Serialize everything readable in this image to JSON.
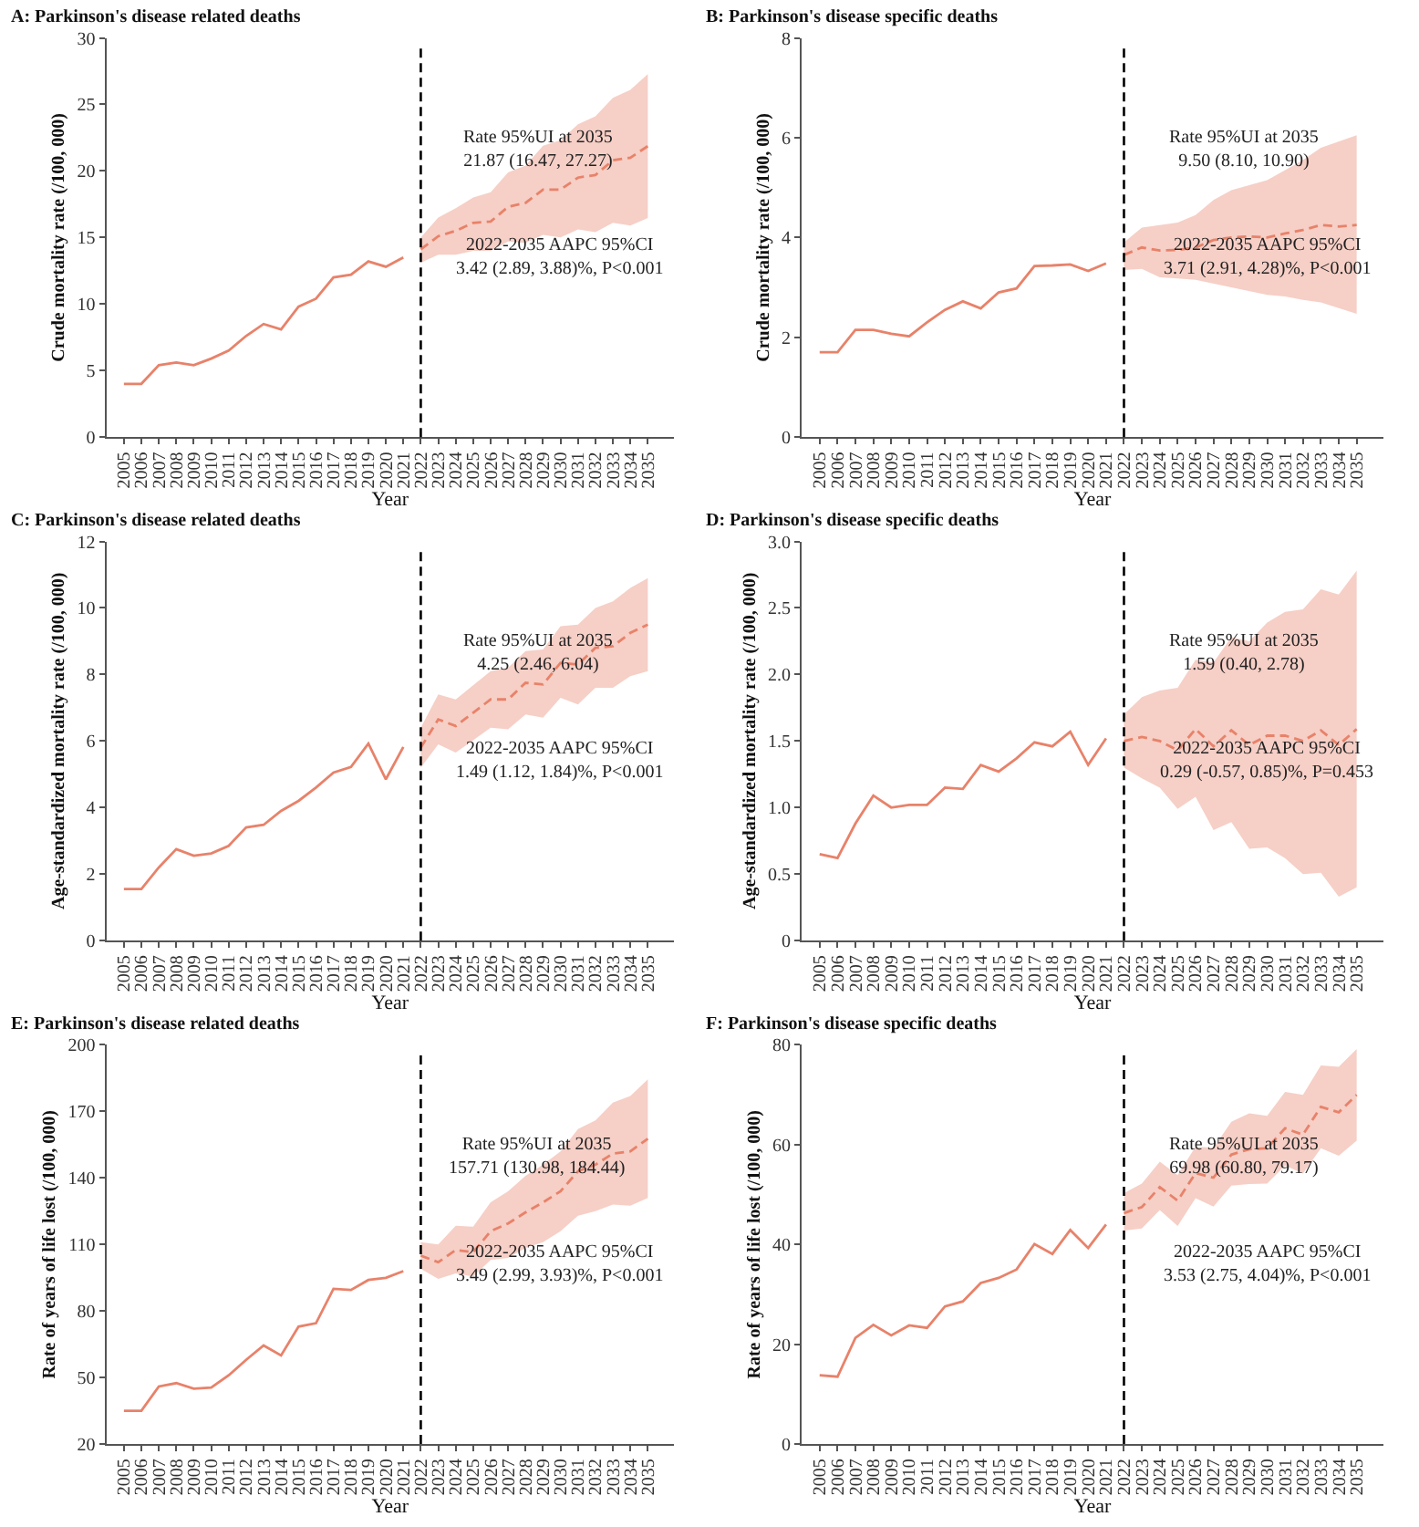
{
  "chart_data": [
    {
      "type": "line",
      "title": "A: Parkinson's disease related deaths",
      "xlabel": "Year",
      "ylabel": "Crude mortality rate (/100, 000)",
      "xlim": [
        2004,
        2036.5
      ],
      "xticks": [
        2005,
        2006,
        2007,
        2008,
        2009,
        2010,
        2011,
        2012,
        2013,
        2014,
        2015,
        2016,
        2017,
        2018,
        2019,
        2020,
        2021,
        2022,
        2023,
        2024,
        2025,
        2026,
        2027,
        2028,
        2029,
        2030,
        2031,
        2032,
        2033,
        2034,
        2035
      ],
      "ylim": [
        0,
        30
      ],
      "yticks": [
        0,
        5,
        10,
        15,
        20,
        25,
        30
      ],
      "marker": "none",
      "series": [
        {
          "color": "#e8826a",
          "line_style": "solid",
          "x": [
            2005,
            2006,
            2007,
            2008,
            2009,
            2010,
            2011,
            2012,
            2013,
            2014,
            2015,
            2016,
            2017,
            2018,
            2019,
            2020,
            2021
          ],
          "values": [
            4.0,
            4.0,
            5.4,
            5.6,
            5.4,
            5.9,
            6.5,
            7.6,
            8.5,
            8.1,
            9.8,
            10.4,
            12.0,
            12.2,
            13.2,
            12.8,
            13.5
          ]
        },
        {
          "color": "#e8826a",
          "line_style": "dashed",
          "x": [
            2022,
            2023,
            2024,
            2025,
            2026,
            2027,
            2028,
            2029,
            2030,
            2031,
            2032,
            2033,
            2034,
            2035
          ],
          "values": [
            14.1,
            15.1,
            15.5,
            16.1,
            16.2,
            17.3,
            17.6,
            18.6,
            18.6,
            19.5,
            19.7,
            20.8,
            21.0,
            21.87
          ],
          "upper": [
            15.0,
            16.5,
            17.2,
            18.0,
            18.4,
            19.9,
            20.4,
            21.9,
            22.3,
            23.5,
            24.1,
            25.5,
            26.1,
            27.27
          ],
          "lower": [
            13.1,
            13.7,
            13.7,
            14.0,
            14.0,
            14.7,
            14.6,
            15.2,
            15.0,
            15.6,
            15.4,
            16.1,
            15.9,
            16.47
          ]
        }
      ],
      "ref_lines": [
        {
          "axis": "x",
          "value": 2022,
          "color": "#000000",
          "line_style": "dashed"
        }
      ],
      "annotations": [
        "Rate 95%UI at 2035\n21.87 (16.47, 27.27)",
        "2022-2035 AAPC 95%CI\n3.42 (2.89, 3.88)%, P<0.001"
      ]
    },
    {
      "type": "line",
      "title": "B: Parkinson's disease specific deaths",
      "xlabel": "Year",
      "ylabel": "Crude mortality rate (/100, 000)",
      "xlim": [
        2004,
        2036.5
      ],
      "xticks": [
        2005,
        2006,
        2007,
        2008,
        2009,
        2010,
        2011,
        2012,
        2013,
        2014,
        2015,
        2016,
        2017,
        2018,
        2019,
        2020,
        2021,
        2022,
        2023,
        2024,
        2025,
        2026,
        2027,
        2028,
        2029,
        2030,
        2031,
        2032,
        2033,
        2034,
        2035
      ],
      "ylim": [
        0,
        8
      ],
      "yticks": [
        0,
        2,
        4,
        6,
        8
      ],
      "marker": "none",
      "series": [
        {
          "color": "#e8826a",
          "line_style": "solid",
          "x": [
            2005,
            2006,
            2007,
            2008,
            2009,
            2010,
            2011,
            2012,
            2013,
            2014,
            2015,
            2016,
            2017,
            2018,
            2019,
            2020,
            2021
          ],
          "values": [
            1.7,
            1.7,
            2.15,
            2.15,
            2.07,
            2.02,
            2.3,
            2.55,
            2.72,
            2.58,
            2.9,
            2.98,
            3.43,
            3.44,
            3.46,
            3.33,
            3.48
          ]
        },
        {
          "color": "#e8826a",
          "line_style": "dashed",
          "x": [
            2022,
            2023,
            2024,
            2025,
            2026,
            2027,
            2028,
            2029,
            2030,
            2031,
            2032,
            2033,
            2034,
            2035
          ],
          "values": [
            3.65,
            3.8,
            3.74,
            3.75,
            3.8,
            3.95,
            4.0,
            4.02,
            4.0,
            4.08,
            4.15,
            4.25,
            4.22,
            4.25
          ],
          "upper": [
            3.9,
            4.2,
            4.25,
            4.3,
            4.45,
            4.75,
            4.95,
            5.05,
            5.15,
            5.35,
            5.55,
            5.8,
            5.92,
            6.05
          ],
          "lower": [
            3.35,
            3.37,
            3.2,
            3.18,
            3.15,
            3.07,
            3.0,
            2.92,
            2.85,
            2.82,
            2.75,
            2.7,
            2.58,
            2.47
          ]
        }
      ],
      "ref_lines": [
        {
          "axis": "x",
          "value": 2022,
          "color": "#000000",
          "line_style": "dashed"
        }
      ],
      "annotations": [
        "Rate 95%UI at 2035\n9.50 (8.10, 10.90)",
        "2022-2035 AAPC 95%CI\n3.71 (2.91, 4.28)%, P<0.001"
      ]
    },
    {
      "type": "line",
      "title": "C: Parkinson's disease related deaths",
      "xlabel": "Year",
      "ylabel": "Age-standardized mortality rate (/100, 000)",
      "xlim": [
        2004,
        2036.5
      ],
      "xticks": [
        2005,
        2006,
        2007,
        2008,
        2009,
        2010,
        2011,
        2012,
        2013,
        2014,
        2015,
        2016,
        2017,
        2018,
        2019,
        2020,
        2021,
        2022,
        2023,
        2024,
        2025,
        2026,
        2027,
        2028,
        2029,
        2030,
        2031,
        2032,
        2033,
        2034,
        2035
      ],
      "ylim": [
        0,
        12
      ],
      "yticks": [
        0,
        2,
        4,
        6,
        8,
        10,
        12
      ],
      "marker": "none",
      "series": [
        {
          "color": "#e8826a",
          "line_style": "solid",
          "x": [
            2005,
            2006,
            2007,
            2008,
            2009,
            2010,
            2011,
            2012,
            2013,
            2014,
            2015,
            2016,
            2017,
            2018,
            2019,
            2020,
            2021
          ],
          "values": [
            1.55,
            1.55,
            2.2,
            2.75,
            2.55,
            2.62,
            2.85,
            3.4,
            3.48,
            3.9,
            4.2,
            4.6,
            5.05,
            5.22,
            5.92,
            4.85,
            5.82
          ]
        },
        {
          "color": "#e8826a",
          "line_style": "dashed",
          "x": [
            2022,
            2023,
            2024,
            2025,
            2026,
            2027,
            2028,
            2029,
            2030,
            2031,
            2032,
            2033,
            2034,
            2035
          ],
          "values": [
            5.8,
            6.65,
            6.45,
            6.85,
            7.25,
            7.25,
            7.75,
            7.7,
            8.35,
            8.3,
            8.8,
            8.85,
            9.25,
            9.5
          ],
          "upper": [
            6.4,
            7.4,
            7.25,
            7.7,
            8.1,
            8.2,
            8.7,
            8.75,
            9.45,
            9.5,
            10.0,
            10.2,
            10.6,
            10.9
          ],
          "lower": [
            5.2,
            5.9,
            5.65,
            6.0,
            6.4,
            6.35,
            6.8,
            6.7,
            7.3,
            7.1,
            7.6,
            7.6,
            7.95,
            8.1
          ]
        }
      ],
      "ref_lines": [
        {
          "axis": "x",
          "value": 2022,
          "color": "#000000",
          "line_style": "dashed"
        }
      ],
      "annotations": [
        "Rate 95%UI at 2035\n4.25 (2.46, 6.04)",
        "2022-2035 AAPC 95%CI\n1.49 (1.12, 1.84)%, P<0.001"
      ]
    },
    {
      "type": "line",
      "title": "D: Parkinson's disease specific deaths",
      "xlabel": "Year",
      "ylabel": "Age-standardized mortality rate (/100, 000)",
      "xlim": [
        2004,
        2036.5
      ],
      "xticks": [
        2005,
        2006,
        2007,
        2008,
        2009,
        2010,
        2011,
        2012,
        2013,
        2014,
        2015,
        2016,
        2017,
        2018,
        2019,
        2020,
        2021,
        2022,
        2023,
        2024,
        2025,
        2026,
        2027,
        2028,
        2029,
        2030,
        2031,
        2032,
        2033,
        2034,
        2035
      ],
      "ylim": [
        0,
        3
      ],
      "yticks": [
        {
          "value": 0,
          "label": "0"
        },
        {
          "value": 0.5,
          "label": "0.5"
        },
        {
          "value": 1,
          "label": "1.0"
        },
        {
          "value": 1.5,
          "label": "1.5"
        },
        {
          "value": 2,
          "label": "2.0"
        },
        {
          "value": 2.5,
          "label": "2.5"
        },
        {
          "value": 3,
          "label": "3.0"
        }
      ],
      "marker": "none",
      "series": [
        {
          "color": "#e8826a",
          "line_style": "solid",
          "x": [
            2005,
            2006,
            2007,
            2008,
            2009,
            2010,
            2011,
            2012,
            2013,
            2014,
            2015,
            2016,
            2017,
            2018,
            2019,
            2020,
            2021
          ],
          "values": [
            0.65,
            0.62,
            0.88,
            1.09,
            1.0,
            1.02,
            1.02,
            1.15,
            1.14,
            1.32,
            1.27,
            1.37,
            1.49,
            1.46,
            1.57,
            1.32,
            1.52
          ]
        },
        {
          "color": "#e8826a",
          "line_style": "dashed",
          "x": [
            2022,
            2023,
            2024,
            2025,
            2026,
            2027,
            2028,
            2029,
            2030,
            2031,
            2032,
            2033,
            2034,
            2035
          ],
          "values": [
            1.5,
            1.53,
            1.5,
            1.43,
            1.59,
            1.46,
            1.58,
            1.47,
            1.54,
            1.54,
            1.5,
            1.58,
            1.47,
            1.59
          ],
          "upper": [
            1.7,
            1.83,
            1.88,
            1.9,
            2.11,
            2.09,
            2.28,
            2.25,
            2.39,
            2.47,
            2.49,
            2.64,
            2.6,
            2.78
          ],
          "lower": [
            1.3,
            1.22,
            1.15,
            0.99,
            1.08,
            0.83,
            0.89,
            0.69,
            0.7,
            0.62,
            0.5,
            0.51,
            0.33,
            0.4
          ]
        }
      ],
      "ref_lines": [
        {
          "axis": "x",
          "value": 2022,
          "color": "#000000",
          "line_style": "dashed"
        }
      ],
      "annotations": [
        "Rate 95%UI at 2035\n1.59 (0.40, 2.78)",
        "2022-2035 AAPC 95%CI\n0.29 (-0.57, 0.85)%, P=0.453"
      ]
    },
    {
      "type": "line",
      "title": "E: Parkinson's disease related deaths",
      "xlabel": "Year",
      "ylabel": "Rate of years of life lost (/100, 000)",
      "xlim": [
        2004,
        2036.5
      ],
      "xticks": [
        2005,
        2006,
        2007,
        2008,
        2009,
        2010,
        2011,
        2012,
        2013,
        2014,
        2015,
        2016,
        2017,
        2018,
        2019,
        2020,
        2021,
        2022,
        2023,
        2024,
        2025,
        2026,
        2027,
        2028,
        2029,
        2030,
        2031,
        2032,
        2033,
        2034,
        2035
      ],
      "ylim": [
        20,
        200
      ],
      "yticks": [
        20,
        50,
        80,
        110,
        140,
        170,
        200
      ],
      "marker": "none",
      "series": [
        {
          "color": "#e8826a",
          "line_style": "solid",
          "x": [
            2005,
            2006,
            2007,
            2008,
            2009,
            2010,
            2011,
            2012,
            2013,
            2014,
            2015,
            2016,
            2017,
            2018,
            2019,
            2020,
            2021
          ],
          "values": [
            35,
            35,
            46,
            47.5,
            45,
            45.5,
            51,
            58,
            64.5,
            60,
            73,
            74.5,
            90,
            89.5,
            94,
            95,
            98
          ]
        },
        {
          "color": "#e8826a",
          "line_style": "dashed",
          "x": [
            2022,
            2023,
            2024,
            2025,
            2026,
            2027,
            2028,
            2029,
            2030,
            2031,
            2032,
            2033,
            2034,
            2035
          ],
          "values": [
            105,
            102,
            107.5,
            106.5,
            116,
            119.5,
            124.5,
            129,
            134,
            143,
            146,
            151,
            152,
            157.71
          ],
          "upper": [
            111,
            110,
            118.5,
            118,
            129,
            134,
            141,
            146,
            152,
            162,
            166,
            174,
            177,
            184.44
          ],
          "lower": [
            99,
            94.5,
            97,
            95.5,
            103,
            104,
            108.5,
            111,
            116,
            123,
            125,
            128,
            127.5,
            130.98
          ]
        }
      ],
      "ref_lines": [
        {
          "axis": "x",
          "value": 2022,
          "color": "#000000",
          "line_style": "dashed"
        }
      ],
      "annotations": [
        "Rate 95%UI at 2035\n157.71 (130.98, 184.44)",
        "2022-2035 AAPC 95%CI\n3.49 (2.99, 3.93)%, P<0.001"
      ]
    },
    {
      "type": "line",
      "title": "F: Parkinson's disease specific deaths",
      "xlabel": "Year",
      "ylabel": "Rate of years of life lost (/100, 000)",
      "xlim": [
        2004,
        2036.5
      ],
      "xticks": [
        2005,
        2006,
        2007,
        2008,
        2009,
        2010,
        2011,
        2012,
        2013,
        2014,
        2015,
        2016,
        2017,
        2018,
        2019,
        2020,
        2021,
        2022,
        2023,
        2024,
        2025,
        2026,
        2027,
        2028,
        2029,
        2030,
        2031,
        2032,
        2033,
        2034,
        2035
      ],
      "ylim": [
        0,
        80
      ],
      "yticks": [
        0,
        20,
        40,
        60,
        80
      ],
      "marker": "none",
      "series": [
        {
          "color": "#e8826a",
          "line_style": "solid",
          "x": [
            2005,
            2006,
            2007,
            2008,
            2009,
            2010,
            2011,
            2012,
            2013,
            2014,
            2015,
            2016,
            2017,
            2018,
            2019,
            2020,
            2021
          ],
          "values": [
            13.8,
            13.5,
            21.3,
            23.9,
            21.8,
            23.8,
            23.3,
            27.6,
            28.6,
            32.3,
            33.3,
            35,
            40.1,
            38.1,
            42.9,
            39.3,
            44.0
          ]
        },
        {
          "color": "#e8826a",
          "line_style": "dashed",
          "x": [
            2022,
            2023,
            2024,
            2025,
            2026,
            2027,
            2028,
            2029,
            2030,
            2031,
            2032,
            2033,
            2034,
            2035
          ],
          "values": [
            46.3,
            47.5,
            51.5,
            48.8,
            54.3,
            53.4,
            58,
            59.1,
            59.3,
            63.3,
            62,
            67.6,
            66.5,
            69.98
          ],
          "upper": [
            50.3,
            52.2,
            56.6,
            53.9,
            59.6,
            59.4,
            64.6,
            66.3,
            65.8,
            70.6,
            70,
            75.9,
            75.6,
            79.17
          ],
          "lower": [
            42.8,
            43.2,
            46.9,
            43.7,
            49.3,
            47.6,
            51.8,
            52.1,
            52.2,
            55.8,
            54.2,
            59.3,
            57.8,
            60.8
          ]
        }
      ],
      "ref_lines": [
        {
          "axis": "x",
          "value": 2022,
          "color": "#000000",
          "line_style": "dashed"
        }
      ],
      "annotations": [
        "Rate 95%UI at 2035\n69.98 (60.80, 79.17)",
        "2022-2035 AAPC 95%CI\n3.53 (2.75, 4.04)%, P<0.001"
      ]
    }
  ]
}
